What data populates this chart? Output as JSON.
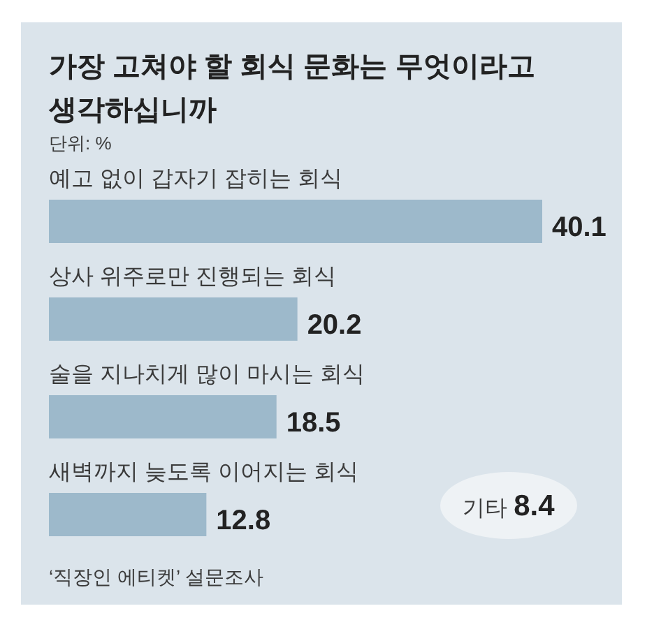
{
  "chart_data": {
    "type": "bar",
    "orientation": "horizontal",
    "title": "가장 고쳐야 할 회식 문화는 무엇이라고 생각하십니까",
    "subtitle": "단위: %",
    "categories": [
      "예고 없이 갑자기 잡히는 회식",
      "상사 위주로만 진행되는 회식",
      "술을 지나치게 많이 마시는 회식",
      "새벽까지 늦도록 이어지는 회식"
    ],
    "values": [
      40.1,
      20.2,
      18.5,
      12.8
    ],
    "color": "#9db9cb",
    "data_labels": true,
    "tick_labels": "y",
    "annotations": [
      "기타 8.4",
      "‘직장인 에티켓’ 설문조사"
    ]
  }
}
